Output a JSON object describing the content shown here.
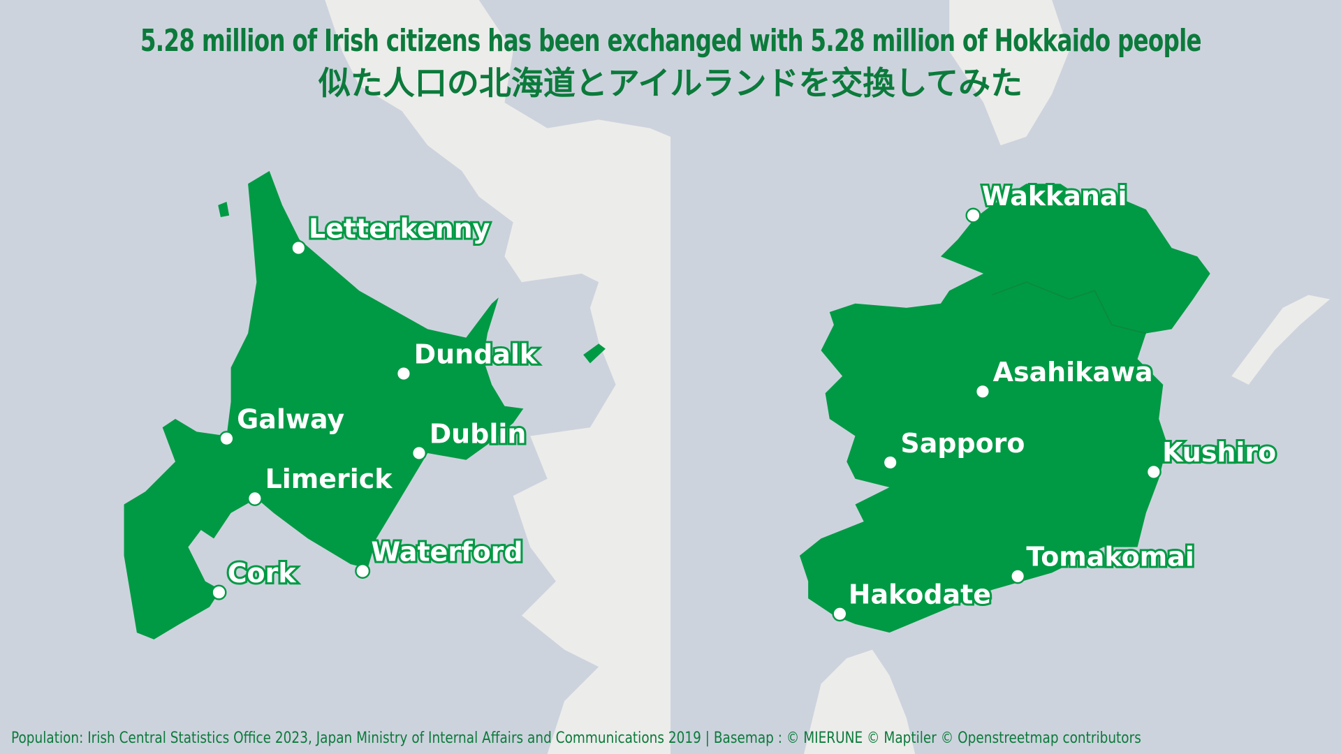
{
  "title": {
    "english": "5.28 million of Irish citizens has been exchanged with 5.28 million of Hokkaido people",
    "japanese": "似た人口の北海道とアイルランドを交換してみた"
  },
  "colors": {
    "land_fill": "#009a44",
    "title_text": "#0b7a3b",
    "sea": "#cdd3dd",
    "basemap_land": "#ececea"
  },
  "left_map": {
    "shape": "Hokkaido outline",
    "cities": [
      "Letterkenny",
      "Dundalk",
      "Galway",
      "Dublin",
      "Limerick",
      "Cork",
      "Waterford"
    ]
  },
  "right_map": {
    "shape": "Ireland outline",
    "cities": [
      "Wakkanai",
      "Asahikawa",
      "Sapporo",
      "Kushiro",
      "Tomakomai",
      "Hakodate"
    ]
  },
  "footer": "Population: Irish Central Statistics Office 2023, Japan Ministry of Internal Affairs and Communications 2019 | Basemap : © MIERUNE  © Maptiler  © Openstreetmap contributors"
}
